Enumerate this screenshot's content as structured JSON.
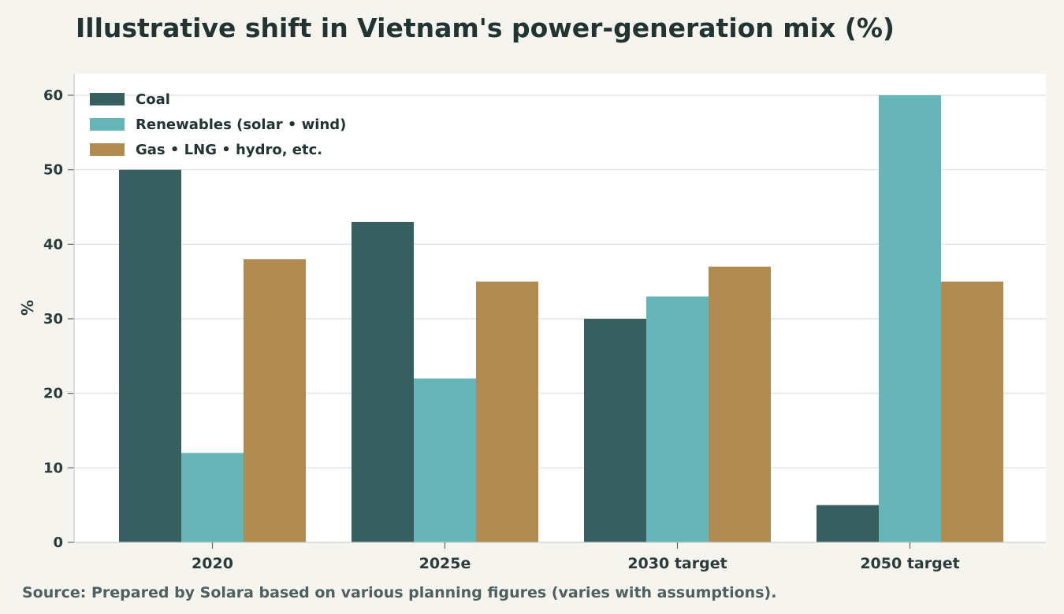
{
  "title": "Illustrative shift in Vietnam's power-generation mix (%)",
  "source": "Source: Prepared by Solara based on various planning figures (varies with assumptions).",
  "colors": {
    "background": "#f5f4ef",
    "plot_background": "#ffffff",
    "grid": "#dcdfdf",
    "coal": "#385f5f",
    "renewables": "#66b5b9",
    "gas": "#b08a4e"
  },
  "chart_data": {
    "type": "bar",
    "title": "Illustrative shift in Vietnam's power-generation mix (%)",
    "xlabel": "",
    "ylabel": "%",
    "categories": [
      "2020",
      "2025e",
      "2030 target",
      "2050 target"
    ],
    "series": [
      {
        "name": "Coal",
        "values": [
          50,
          43,
          30,
          5
        ],
        "color": "#385f5f"
      },
      {
        "name": "Renewables (solar • wind)",
        "values": [
          12,
          22,
          33,
          60
        ],
        "color": "#66b5b9"
      },
      {
        "name": "Gas • LNG • hydro, etc.",
        "values": [
          38,
          35,
          37,
          35
        ],
        "color": "#b08a4e"
      }
    ],
    "ylim": [
      0,
      63
    ],
    "yticks": [
      0,
      10,
      20,
      30,
      40,
      50,
      60
    ],
    "grid": true,
    "legend_position": "top-left"
  }
}
